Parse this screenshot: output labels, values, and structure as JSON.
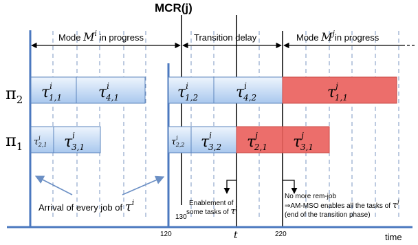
{
  "title": "MCR(j)",
  "headers": {
    "mode_i": {
      "prefix": "Mode ",
      "sym": "M",
      "sup": "i",
      "suffix": " in progress"
    },
    "transition": "Transition delay",
    "mode_j": {
      "prefix": "Mode ",
      "sym": "M",
      "sup": "j",
      "suffix": "in progress"
    }
  },
  "processors": [
    {
      "sym": "π",
      "sub": "2"
    },
    {
      "sym": "π",
      "sub": "1"
    }
  ],
  "tasks": {
    "p2": [
      {
        "sub": "1,1",
        "sup": "i",
        "color": "blue"
      },
      {
        "sub": "4,1",
        "sup": "i",
        "color": "blue"
      },
      {
        "sub": "1,2",
        "sup": "i",
        "color": "blue"
      },
      {
        "sub": "4,2",
        "sup": "i",
        "color": "blue"
      },
      {
        "sub": "1,1",
        "sup": "j",
        "color": "red"
      }
    ],
    "p1": [
      {
        "sub": "2,1",
        "sup": "i",
        "color": "blue"
      },
      {
        "sub": "3,1",
        "sup": "i",
        "color": "blue"
      },
      {
        "sub": "2,2",
        "sup": "i",
        "color": "blue"
      },
      {
        "sub": "3,2",
        "sup": "i",
        "color": "blue"
      },
      {
        "sub": "2,1",
        "sup": "j",
        "color": "red"
      },
      {
        "sub": "3,1",
        "sup": "j",
        "color": "red"
      }
    ]
  },
  "annotations": {
    "arrival": {
      "text": "Arrival of every job of ",
      "sym": "τ",
      "sup": "i"
    },
    "enablement_line1": "Enablement of",
    "enablement_line2": "some tasks of ",
    "enablement_sym": "τ",
    "enablement_sup": "j",
    "norem_line1": "No more rem-job",
    "norem_line2": "⇒AM-MSO enables all the tasks of ",
    "norem_sym": "τ",
    "norem_sup": "j",
    "norem_line3": "(end of the transition phase)"
  },
  "axis": {
    "ticks": [
      "120",
      "130",
      "t",
      "220"
    ],
    "label": "time"
  },
  "colors": {
    "blue_top": "#eaf2fc",
    "blue_bottom": "#a9c8ee",
    "blue_stroke": "#5b84bd",
    "red_fill": "#ec6e6b",
    "red_stroke": "#c84946"
  }
}
